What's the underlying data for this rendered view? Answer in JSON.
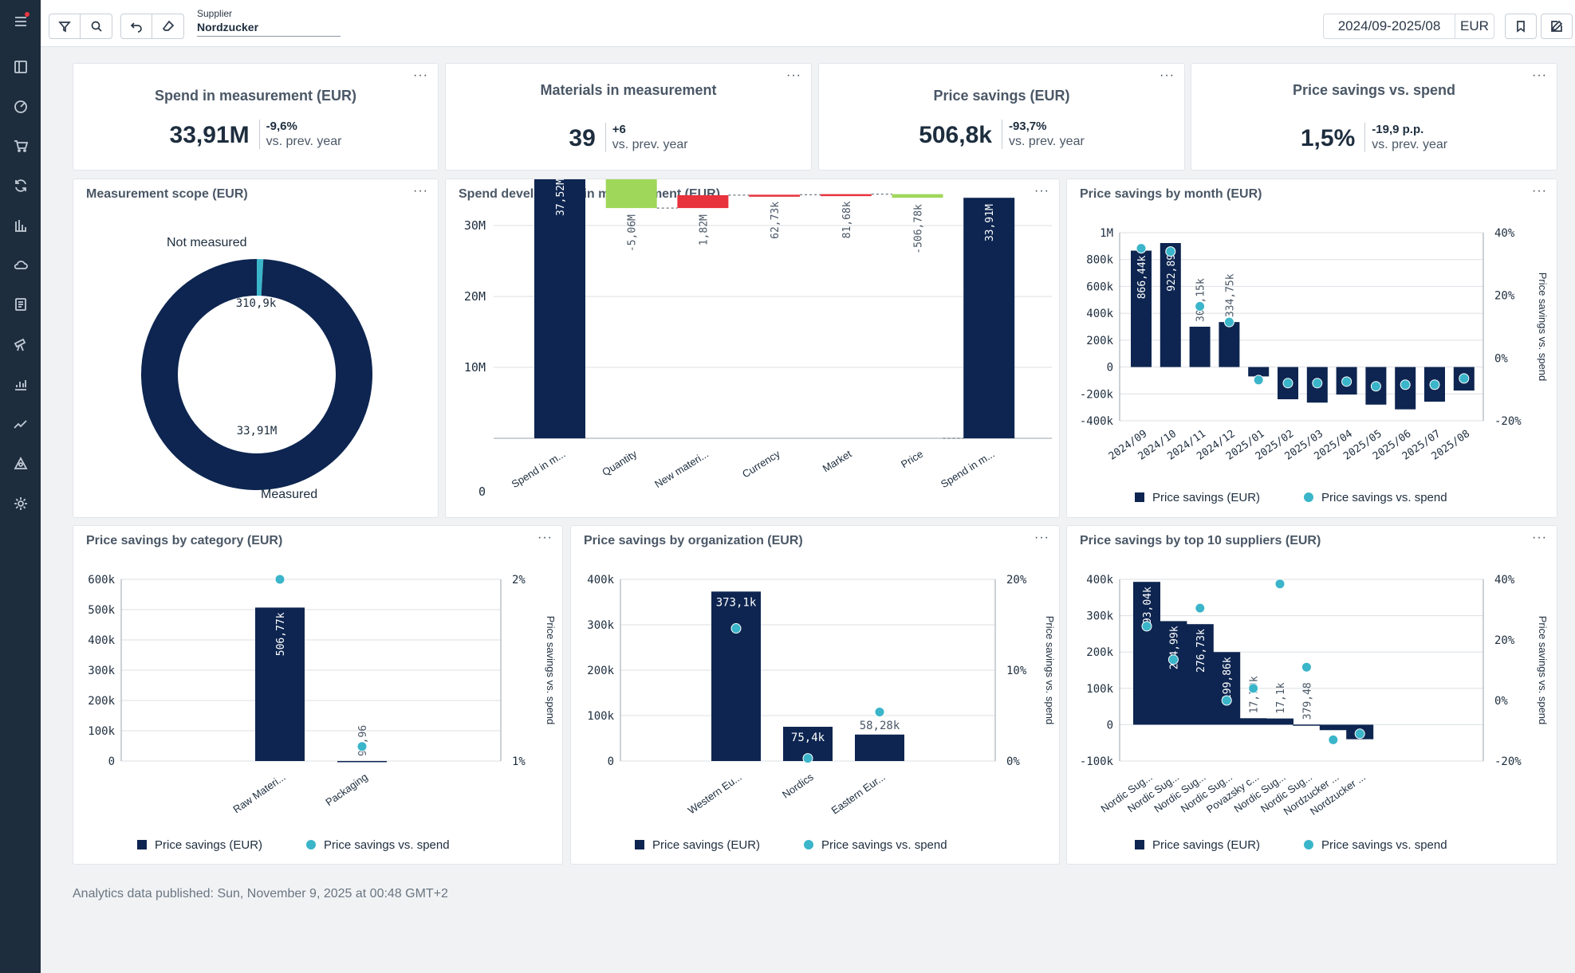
{
  "toolbar": {
    "supplier_label": "Supplier",
    "supplier_value": "Nordzucker",
    "period": "2024/09-2025/08",
    "currency": "EUR"
  },
  "kpis": [
    {
      "title": "Spend in measurement (EUR)",
      "value": "33,91M",
      "delta": "-9,6%",
      "sub": "vs. prev. year"
    },
    {
      "title": "Materials in measurement",
      "value": "39",
      "delta": "+6",
      "sub": "vs. prev. year"
    },
    {
      "title": "Price savings (EUR)",
      "value": "506,8k",
      "delta": "-93,7%",
      "sub": "vs. prev. year"
    },
    {
      "title": "Price savings vs. spend",
      "value": "1,5%",
      "delta": "-19,9 p.p.",
      "sub": "vs. prev. year"
    }
  ],
  "colors": {
    "navy": "#0d2550",
    "teal": "#3ab5c9",
    "green": "#9fd75a",
    "red": "#e8323c",
    "grid": "#dcdfe3"
  },
  "charts": {
    "scope": {
      "title": "Measurement scope (EUR)",
      "slices": [
        {
          "name": "Not measured",
          "value": 310.9,
          "label": "310,9k",
          "color": "#3ab5c9"
        },
        {
          "name": "Measured",
          "value": 33910,
          "label": "33,91M",
          "color": "#0d2550"
        }
      ]
    },
    "waterfall": {
      "title": "Spend development in measurement (EUR)",
      "y_ticks": [
        "0",
        "10M",
        "20M",
        "30M"
      ],
      "ylim": [
        0,
        37.52
      ],
      "steps": [
        {
          "cat": "Spend in m...",
          "type": "total",
          "value": 37.52,
          "label": "37,52M"
        },
        {
          "cat": "Quantity",
          "type": "delta",
          "value": -5.06,
          "label": "-5,06M"
        },
        {
          "cat": "New materi...",
          "type": "delta",
          "value": 1.82,
          "label": "1,82M"
        },
        {
          "cat": "Currency",
          "type": "delta",
          "value": 0.06273,
          "label": "62,73k"
        },
        {
          "cat": "Market",
          "type": "delta",
          "value": 0.08168,
          "label": "81,68k"
        },
        {
          "cat": "Price",
          "type": "delta",
          "value": -0.5068,
          "label": "-506,78k"
        },
        {
          "cat": "Spend in m...",
          "type": "total",
          "value": 33.91,
          "label": "33,91M"
        }
      ]
    },
    "month": {
      "title": "Price savings by month (EUR)",
      "y_ticks": [
        "-400k",
        "-200k",
        "0",
        "200k",
        "400k",
        "600k",
        "800k",
        "1M"
      ],
      "y2_ticks": [
        "-20%",
        "0%",
        "20%",
        "40%"
      ],
      "y2_label": "Price savings vs. spend",
      "ylim": [
        -400,
        1000
      ],
      "y2lim": [
        -20,
        40
      ],
      "categories": [
        "2024/09",
        "2024/10",
        "2024/11",
        "2024/12",
        "2025/01",
        "2025/02",
        "2025/03",
        "2025/04",
        "2025/05",
        "2025/06",
        "2025/07",
        "2025/08"
      ],
      "values": [
        866.44,
        922.89,
        300.15,
        334.75,
        -70,
        -240,
        -265,
        -205,
        -280,
        -315,
        -258,
        -175
      ],
      "labels": [
        "866,44k",
        "922,89k",
        "300,15k",
        "334,75k",
        "",
        "",
        "",
        "",
        "",
        "",
        "",
        ""
      ],
      "ratios": [
        35,
        34,
        16.5,
        11.5,
        -7,
        -8,
        -8,
        -7.5,
        -9,
        -8.5,
        -8.5,
        -6.5
      ],
      "legend": [
        "Price savings (EUR)",
        "Price savings vs. spend"
      ]
    },
    "category": {
      "title": "Price savings by category (EUR)",
      "y_ticks": [
        "0",
        "100k",
        "200k",
        "300k",
        "400k",
        "500k",
        "600k"
      ],
      "y2_ticks": [
        "1%",
        "2%"
      ],
      "y2_label": "Price savings vs. spend",
      "ylim": [
        0,
        600
      ],
      "y2lim": [
        1,
        2
      ],
      "categories": [
        "Raw Materi...",
        "Packaging"
      ],
      "values": [
        506.77,
        0.09596
      ],
      "labels": [
        "506,77k",
        "95,96"
      ],
      "ratios": [
        2.0,
        1.08
      ],
      "legend": [
        "Price savings (EUR)",
        "Price savings vs. spend"
      ]
    },
    "organization": {
      "title": "Price savings by organization (EUR)",
      "y_ticks": [
        "0",
        "100k",
        "200k",
        "300k",
        "400k"
      ],
      "y2_ticks": [
        "0%",
        "10%",
        "20%"
      ],
      "y2_label": "Price savings vs. spend",
      "ylim": [
        0,
        400
      ],
      "y2lim": [
        0,
        20
      ],
      "categories": [
        "Western Eu...",
        "Nordics",
        "Eastern Eur..."
      ],
      "values": [
        373.1,
        75.4,
        58.28
      ],
      "labels": [
        "373,1k",
        "75,4k",
        "58,28k"
      ],
      "ratios": [
        14.6,
        0.3,
        5.4
      ],
      "legend": [
        "Price savings (EUR)",
        "Price savings vs. spend"
      ]
    },
    "suppliers": {
      "title": "Price savings by top 10 suppliers (EUR)",
      "y_ticks": [
        "-100k",
        "0",
        "100k",
        "200k",
        "300k",
        "400k"
      ],
      "y2_ticks": [
        "-20%",
        "0%",
        "20%",
        "40%"
      ],
      "y2_label": "Price savings vs. spend",
      "ylim": [
        -100,
        400
      ],
      "y2lim": [
        -20,
        40
      ],
      "categories": [
        "Nordic Sug...",
        "Nordic Sug...",
        "Nordic Sug...",
        "Nordic Sug...",
        "Povazsky c...",
        "Nordic Sug...",
        "Nordic Sug...",
        "Nordzucker ...",
        "Nordzucker ..."
      ],
      "values": [
        393.04,
        284.99,
        276.73,
        199.86,
        17.79,
        17.1,
        0.37948,
        -15,
        -40
      ],
      "labels": [
        "393,04k",
        "284,99k",
        "276,73k",
        "199,86k",
        "17,79k",
        "17,1k",
        "379,48",
        "",
        ""
      ],
      "ratios": [
        24.5,
        13.5,
        30.5,
        0,
        4,
        38.5,
        11,
        -13,
        -11
      ],
      "legend": [
        "Price savings (EUR)",
        "Price savings vs. spend"
      ]
    }
  },
  "footer": "Analytics data published: Sun, November 9, 2025 at 00:48 GMT+2"
}
